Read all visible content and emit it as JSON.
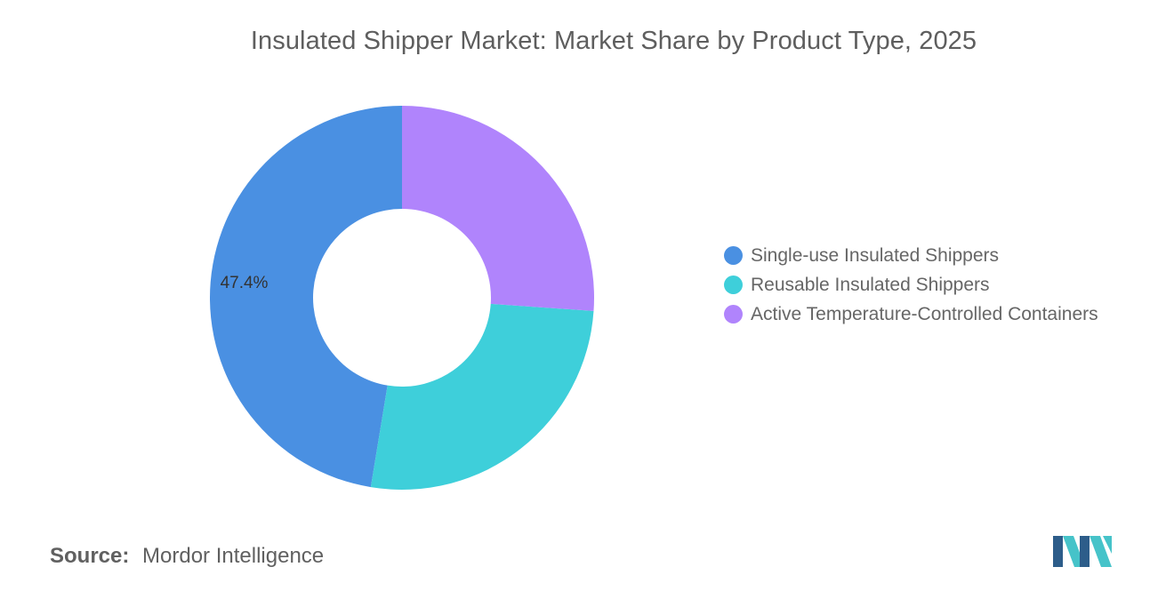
{
  "chart_data": {
    "type": "pie",
    "variant": "donut",
    "title": "Insulated Shipper Market: Market Share by Product Type, 2025",
    "slices": [
      {
        "name": "Single-use Insulated Shippers",
        "value": 47.4,
        "label": "47.4%",
        "color": "#4a90e2"
      },
      {
        "name": "Reusable Insulated Shippers",
        "value": 26.5,
        "label": "",
        "color": "#3ecfda"
      },
      {
        "name": "Active Temperature-Controlled Containers",
        "value": 26.1,
        "label": "",
        "color": "#b084fc"
      }
    ],
    "legend": {
      "position": "right"
    }
  },
  "source": {
    "label": "Source:",
    "value": "Mordor Intelligence"
  },
  "logo": {
    "name": "mordor-intelligence-logo",
    "colors": [
      "#2d5d8a",
      "#46c3c9"
    ]
  }
}
